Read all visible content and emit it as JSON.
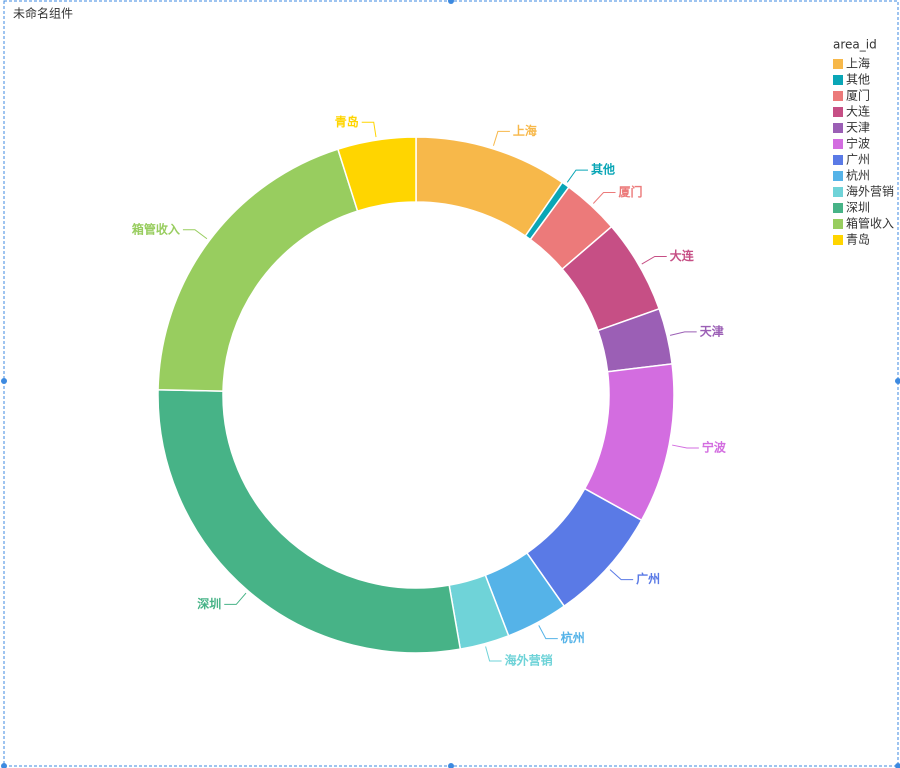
{
  "component": {
    "title": "未命名组件"
  },
  "chart_data": {
    "type": "donut",
    "legend_title": "area_id",
    "legend_position": "top-right",
    "categories": [
      "上海",
      "其他",
      "厦门",
      "大连",
      "天津",
      "宁波",
      "广州",
      "杭州",
      "海外营销",
      "深圳",
      "箱管收入",
      "青岛"
    ],
    "values": [
      9.6,
      0.5,
      3.6,
      5.9,
      3.5,
      10,
      7.2,
      3.9,
      3.1,
      28.1,
      19.8,
      4.9
    ],
    "colors": [
      "#f7b84a",
      "#0aa6b6",
      "#ec7a7a",
      "#c64f85",
      "#9b5fb5",
      "#d36de0",
      "#5a7ae6",
      "#55b3e8",
      "#6fd3d8",
      "#47b387",
      "#98cd5f",
      "#ffd500"
    ]
  }
}
